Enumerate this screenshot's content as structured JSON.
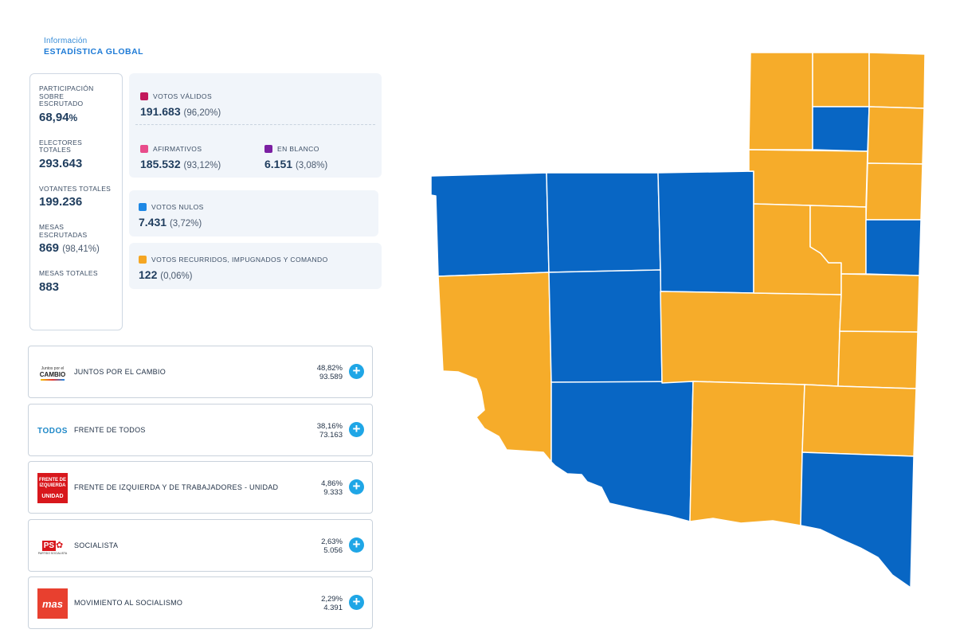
{
  "header": {
    "subtitle": "Información",
    "title": "ESTADÍSTICA GLOBAL"
  },
  "stats": {
    "participacion": {
      "label": "PARTICIPACIÓN SOBRE ESCRUTADO",
      "value": "68,94",
      "unit": "%"
    },
    "electores": {
      "label": "ELECTORES TOTALES",
      "value": "293.643"
    },
    "votantes": {
      "label": "VOTANTES TOTALES",
      "value": "199.236"
    },
    "mesas_escrutadas": {
      "label": "MESAS ESCRUTADAS",
      "value": "869",
      "paren": "(98,41%)"
    },
    "mesas_totales": {
      "label": "MESAS TOTALES",
      "value": "883"
    }
  },
  "votes": {
    "validos": {
      "label": "VOTOS VÁLIDOS",
      "value": "191.683",
      "pct": "(96,20%)",
      "color": "#c2185b"
    },
    "afirmativos": {
      "label": "AFIRMATIVOS",
      "value": "185.532",
      "pct": "(93,12%)",
      "color": "#e84c8b"
    },
    "blanco": {
      "label": "EN BLANCO",
      "value": "6.151",
      "pct": "(3,08%)",
      "color": "#7b1fa2"
    },
    "nulos": {
      "label": "VOTOS NULOS",
      "value": "7.431",
      "pct": "(3,72%)",
      "color": "#1e88e5"
    },
    "recurridos": {
      "label": "VOTOS RECURRIDOS, IMPUGNADOS Y COMANDO",
      "value": "122",
      "pct": "(0,06%)",
      "color": "#f5a623"
    }
  },
  "parties": [
    {
      "name": "JUNTOS POR EL CAMBIO",
      "pct": "48,82%",
      "votes": "93.589",
      "logo_text": [
        "Juntos por el",
        "CAMBIO"
      ]
    },
    {
      "name": "FRENTE DE TODOS",
      "pct": "38,16%",
      "votes": "73.163",
      "logo_text": [
        "TODOS"
      ]
    },
    {
      "name": "FRENTE DE IZQUIERDA Y DE TRABAJADORES - UNIDAD",
      "pct": "4,86%",
      "votes": "9.333",
      "logo_text": [
        "FRENTE DE",
        "IZQUIERDA",
        "UNIDAD"
      ]
    },
    {
      "name": "SOCIALISTA",
      "pct": "2,63%",
      "votes": "5.056",
      "logo_text": [
        "PS",
        "PARTIDO SOCIALISTA"
      ]
    },
    {
      "name": "MOVIMIENTO AL SOCIALISMO",
      "pct": "2,29%",
      "votes": "4.391",
      "logo_text": [
        "mas"
      ]
    }
  ],
  "map": {
    "colors": {
      "blue": "#0866c4",
      "orange": "#f6ac2a"
    }
  }
}
